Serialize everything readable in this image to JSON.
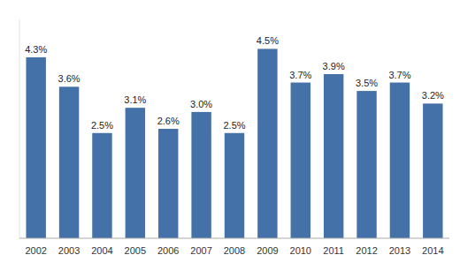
{
  "chart_data": {
    "type": "bar",
    "categories": [
      "2002",
      "2003",
      "2004",
      "2005",
      "2006",
      "2007",
      "2008",
      "2009",
      "2010",
      "2011",
      "2012",
      "2013",
      "2014"
    ],
    "values": [
      4.3,
      3.6,
      2.5,
      3.1,
      2.6,
      3.0,
      2.5,
      4.5,
      3.7,
      3.9,
      3.5,
      3.7,
      3.2
    ],
    "value_labels": [
      "4.3%",
      "3.6%",
      "2.5%",
      "3.1%",
      "2.6%",
      "3.0%",
      "2.5%",
      "4.5%",
      "3.7%",
      "3.9%",
      "3.5%",
      "3.7%",
      "3.2%"
    ],
    "color": "#4472A8",
    "ylim": [
      0,
      5.2
    ],
    "grid": false,
    "data_labels": true,
    "tick_labels": "x"
  }
}
